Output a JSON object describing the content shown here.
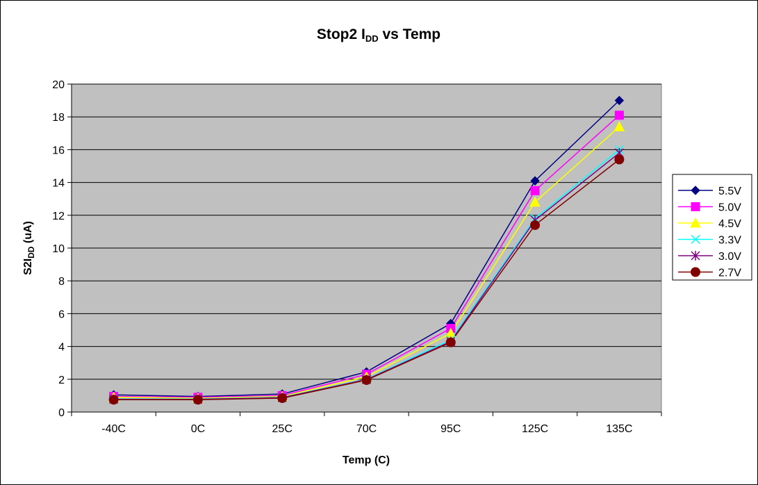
{
  "chart_data": {
    "type": "line",
    "title_main": "Stop2 I",
    "title_sub": "DD",
    "title_tail": " vs Temp",
    "xlabel": "Temp (C)",
    "ylabel_main": "S2I",
    "ylabel_sub": "DD",
    "ylabel_tail": " (uA)",
    "categories": [
      "-40C",
      "0C",
      "25C",
      "70C",
      "95C",
      "125C",
      "135C"
    ],
    "ylim": [
      0,
      20
    ],
    "yticks": [
      "0",
      "2",
      "4",
      "6",
      "8",
      "10",
      "12",
      "14",
      "16",
      "18",
      "20"
    ],
    "grid": true,
    "plot_background": "#c0c0c0",
    "legend_position": "right",
    "series": [
      {
        "name": "5.5V",
        "color": "#000080",
        "marker": "diamond",
        "values": [
          1.05,
          0.95,
          1.1,
          2.45,
          5.4,
          14.1,
          19.0
        ]
      },
      {
        "name": "5.0V",
        "color": "#ff00ff",
        "marker": "square",
        "values": [
          0.95,
          0.9,
          1.0,
          2.3,
          5.1,
          13.5,
          18.1
        ]
      },
      {
        "name": "4.5V",
        "color": "#ffff00",
        "marker": "triangle",
        "values": [
          0.9,
          0.85,
          0.95,
          2.15,
          4.8,
          12.8,
          17.4
        ]
      },
      {
        "name": "3.3V",
        "color": "#00ffff",
        "marker": "x",
        "values": [
          0.8,
          0.8,
          0.9,
          2.0,
          4.4,
          11.8,
          16.0
        ]
      },
      {
        "name": "3.0V",
        "color": "#800080",
        "marker": "star",
        "values": [
          0.78,
          0.78,
          0.88,
          1.98,
          4.3,
          11.7,
          15.8
        ]
      },
      {
        "name": "2.7V",
        "color": "#800000",
        "marker": "circle",
        "values": [
          0.75,
          0.75,
          0.85,
          1.95,
          4.25,
          11.4,
          15.4
        ]
      }
    ]
  }
}
